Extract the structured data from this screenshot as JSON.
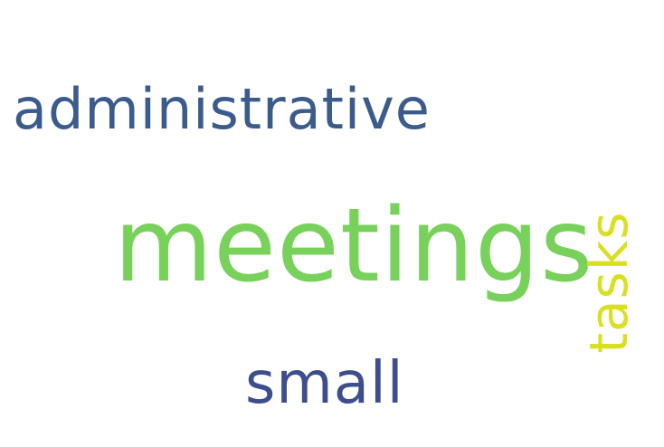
{
  "words": [
    {
      "text": "administrative",
      "color": "#3b5b8c"
    },
    {
      "text": "meetings",
      "color": "#77d15a"
    },
    {
      "text": "tasks",
      "color": "#d9e021"
    },
    {
      "text": "small",
      "color": "#3e4d8c"
    }
  ]
}
